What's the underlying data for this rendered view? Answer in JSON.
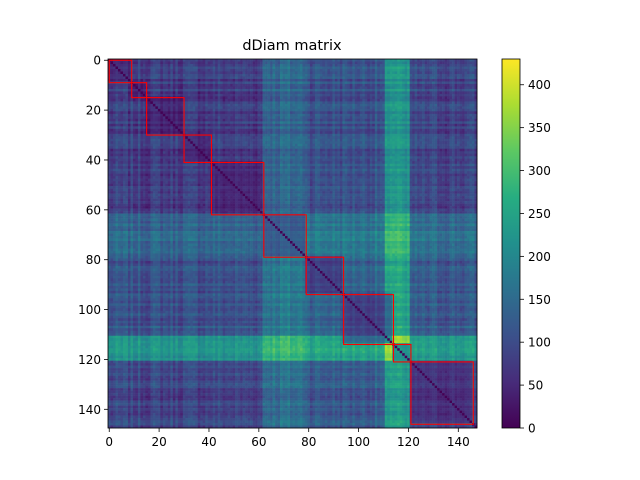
{
  "chart_data": {
    "type": "heatmap",
    "title": "dDiam matrix",
    "size": 148,
    "xlim": [
      -0.5,
      147.5
    ],
    "ylim": [
      147.5,
      -0.5
    ],
    "x_ticks": [
      0,
      20,
      40,
      60,
      80,
      100,
      120,
      140
    ],
    "y_ticks": [
      0,
      20,
      40,
      60,
      80,
      100,
      120,
      140
    ],
    "colorbar": {
      "min": 0,
      "max": 430,
      "ticks": [
        0,
        50,
        100,
        150,
        200,
        250,
        300,
        350,
        400
      ],
      "colormap": "viridis"
    },
    "cluster_boundaries": [
      0,
      9,
      15,
      30,
      41,
      62,
      79,
      94,
      114,
      121,
      146
    ],
    "highlight_color": "#ff0000",
    "column_profile": [
      {
        "range": [
          0,
          61
        ],
        "level": 70
      },
      {
        "range": [
          62,
          79
        ],
        "level": 190
      },
      {
        "range": [
          80,
          110
        ],
        "level": 130
      },
      {
        "range": [
          111,
          113
        ],
        "level": 300
      },
      {
        "range": [
          114,
          117
        ],
        "level": 360
      },
      {
        "range": [
          118,
          120
        ],
        "level": 300
      },
      {
        "range": [
          121,
          147
        ],
        "level": 90
      }
    ]
  }
}
